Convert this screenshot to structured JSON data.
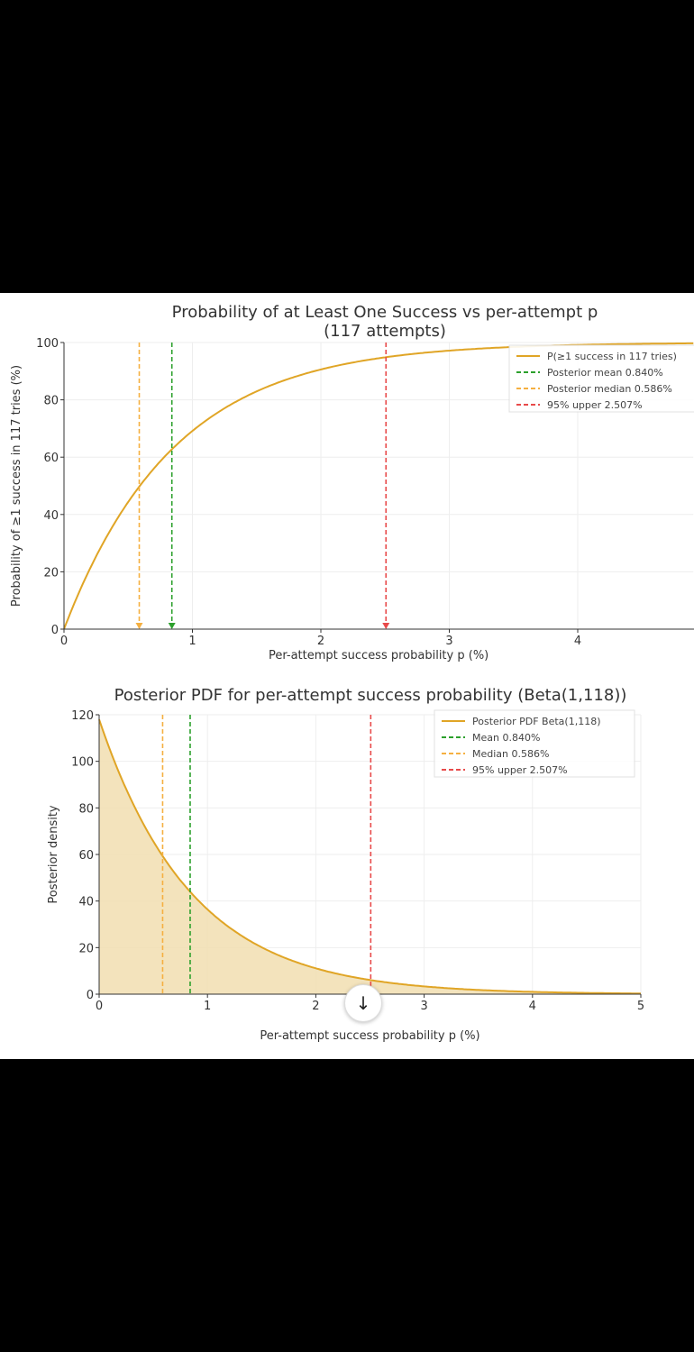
{
  "colors": {
    "curve": "#e0a526",
    "mean": "#2ca02c",
    "median": "#f5b041",
    "upper": "#e84a4a",
    "fill": "#f1deb0"
  },
  "chart_data": [
    {
      "type": "line",
      "title": "Probability of at Least One Success vs per-attempt p",
      "subtitle": "(117 attempts)",
      "xlabel": "Per-attempt success probability p (%)",
      "ylabel": "Probability of ≥1 success in 117 tries (%)",
      "xlim": [
        0,
        4.9
      ],
      "ylim": [
        0,
        100
      ],
      "xticks": [
        "0",
        "1",
        "2",
        "3",
        "4"
      ],
      "yticks": [
        "0",
        "20",
        "40",
        "60",
        "80",
        "100"
      ],
      "attempts": 117,
      "series": [
        {
          "name": "P(≥1 success in 117 tries)",
          "formula": "100*(1-(1-p/100)^117)"
        }
      ],
      "vlines": [
        {
          "name": "Posterior mean 0.840%",
          "x": 0.84,
          "color": "mean"
        },
        {
          "name": "Posterior median 0.586%",
          "x": 0.586,
          "color": "median"
        },
        {
          "name": "95% upper 2.507%",
          "x": 2.507,
          "color": "upper"
        }
      ],
      "legend": "top-right",
      "grid": true
    },
    {
      "type": "area",
      "title": "Posterior PDF for per-attempt success probability (Beta(1,118))",
      "xlabel": "Per-attempt success probability p (%)",
      "ylabel": "Posterior density",
      "xlim": [
        0,
        5
      ],
      "ylim": [
        0,
        120
      ],
      "xticks": [
        "0",
        "1",
        "2",
        "3",
        "4",
        "5"
      ],
      "yticks": [
        "0",
        "20",
        "40",
        "60",
        "80",
        "100",
        "120"
      ],
      "series": [
        {
          "name": "Posterior PDF Beta(1,118)",
          "formula": "118*(1-p/100)^117"
        }
      ],
      "vlines": [
        {
          "name": "Mean 0.840%",
          "x": 0.84,
          "color": "mean"
        },
        {
          "name": "Median 0.586%",
          "x": 0.586,
          "color": "median"
        },
        {
          "name": "95% upper 2.507%",
          "x": 2.507,
          "color": "upper"
        }
      ],
      "legend": "top-right",
      "grid": true
    }
  ],
  "scroll_button": {
    "icon": "arrow-down-icon",
    "glyph": "↓"
  }
}
